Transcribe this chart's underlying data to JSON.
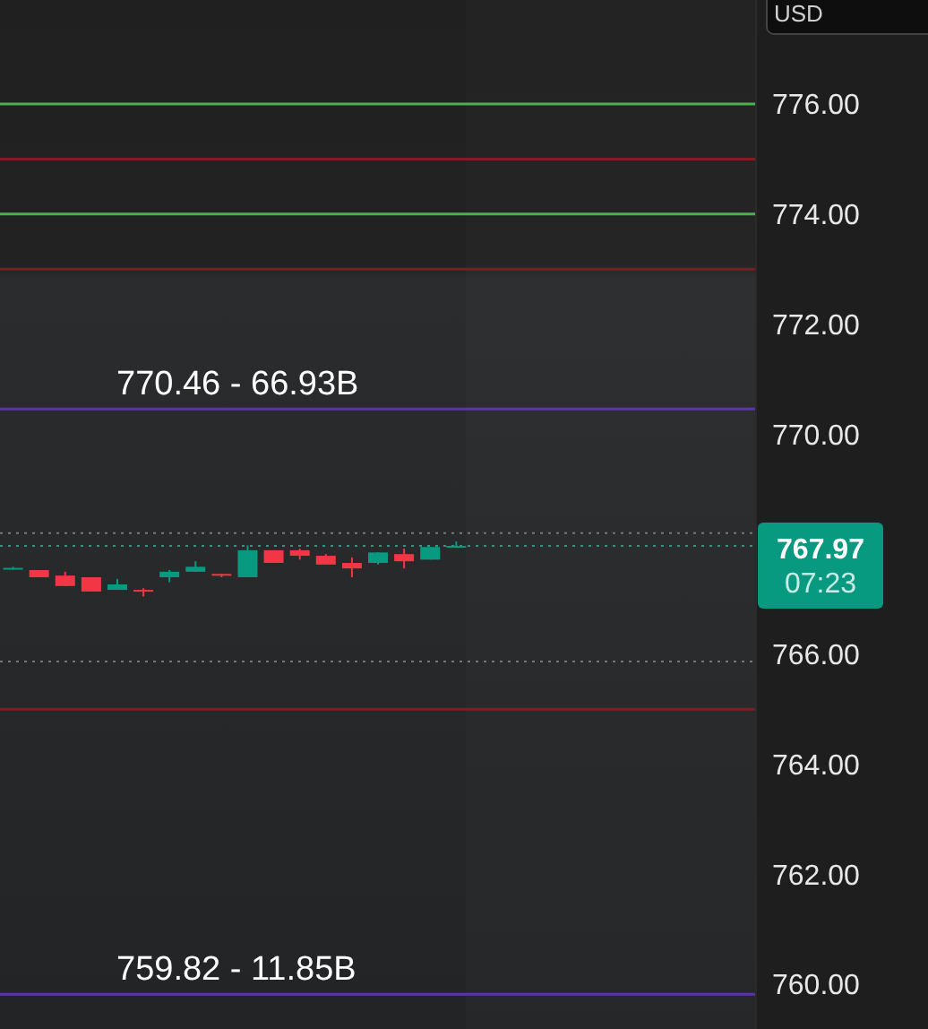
{
  "chart_data": {
    "type": "candlestick",
    "categories": [
      null,
      null,
      null,
      null,
      null,
      null,
      null,
      null,
      null,
      null,
      null,
      null,
      null,
      null,
      null,
      null,
      null,
      null,
      null,
      null,
      null,
      null,
      null,
      null,
      null,
      null,
      null,
      null,
      null
    ],
    "ohlc": [
      [
        767.55,
        767.59,
        767.54,
        767.57
      ],
      [
        767.53,
        767.53,
        767.4,
        767.4
      ],
      [
        767.43,
        767.5,
        767.24,
        767.24
      ],
      [
        767.4,
        767.4,
        767.14,
        767.14
      ],
      [
        767.17,
        767.37,
        767.17,
        767.27
      ],
      [
        767.17,
        767.2,
        767.05,
        767.15
      ],
      [
        767.4,
        767.53,
        767.31,
        767.5
      ],
      [
        767.5,
        767.69,
        767.5,
        767.59
      ],
      [
        767.46,
        767.46,
        767.4,
        767.43
      ],
      [
        767.4,
        767.98,
        767.4,
        767.89
      ],
      [
        767.89,
        767.89,
        767.66,
        767.66
      ],
      [
        767.89,
        767.92,
        767.72,
        767.79
      ],
      [
        767.79,
        767.82,
        767.63,
        767.63
      ],
      [
        767.66,
        767.76,
        767.4,
        767.56
      ],
      [
        767.66,
        767.85,
        767.63,
        767.85
      ],
      [
        767.82,
        767.92,
        767.56,
        767.69
      ],
      [
        767.72,
        767.95,
        767.72,
        767.95
      ],
      [
        767.95,
        768.05,
        767.95,
        767.97
      ],
      null,
      null,
      null,
      null,
      null,
      null,
      null,
      null,
      null,
      null,
      null
    ],
    "colors": [
      "#089981",
      "#f23645",
      "#f23645",
      "#f23645",
      "#089981",
      "#f23645",
      "#089981",
      "#089981",
      "#f23645",
      "#089981",
      "#f23645",
      "#f23645",
      "#f23645",
      "#f23645",
      "#089981",
      "#f23645",
      "#089981",
      "#089981",
      null,
      null,
      null,
      null,
      null,
      null,
      null,
      null,
      null,
      null,
      null
    ],
    "ylim": [
      759.19,
      777.89
    ],
    "yticks": [
      {
        "value": 760,
        "label": "760.00"
      },
      {
        "value": 762,
        "label": "762.00"
      },
      {
        "value": 764,
        "label": "764.00"
      },
      {
        "value": 766,
        "label": "766.00"
      },
      {
        "value": 770,
        "label": "770.00"
      },
      {
        "value": 772,
        "label": "772.00"
      },
      {
        "value": 774,
        "label": "774.00"
      },
      {
        "value": 776,
        "label": "776.00"
      }
    ],
    "ref_lines": [
      {
        "axis": "y",
        "value": 776,
        "color": "#4caf50"
      },
      {
        "axis": "y",
        "value": 775,
        "color": "#801c24"
      },
      {
        "axis": "y",
        "value": 774,
        "color": "#4caf50"
      },
      {
        "axis": "y",
        "value": 773,
        "color": "#801c24"
      },
      {
        "axis": "y",
        "value": 770.46,
        "label": "770.46 - 66.93B",
        "color": "#5b34a8"
      },
      {
        "axis": "y",
        "value": 765,
        "color": "#801c24"
      },
      {
        "axis": "y",
        "value": 759.82,
        "label": "759.82 - 11.85B",
        "color": "#5b34a8"
      },
      {
        "axis": "y",
        "value": 768.2,
        "color": "#777777",
        "line_style": "dotted"
      },
      {
        "axis": "y",
        "value": 767.97,
        "label": "767.97",
        "color": "#3a8f80",
        "line_style": "dotted"
      },
      {
        "axis": "y",
        "value": 765.87,
        "color": "#777777",
        "line_style": "dotted"
      }
    ],
    "annotations": [
      "USD",
      "07:23"
    ]
  }
}
